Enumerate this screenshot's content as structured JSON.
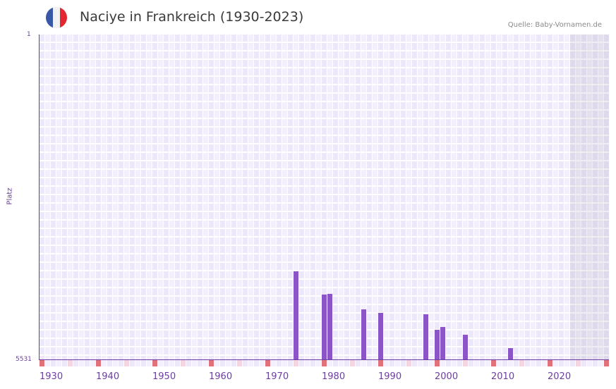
{
  "header": {
    "title": "Naciye in Frankreich (1930-2023)",
    "source": "Quelle: Baby-Vornamen.de",
    "flag_colors": [
      "#3a58a8",
      "#f2f2f2",
      "#e3262f"
    ]
  },
  "axis": {
    "y_top_label": "1",
    "y_bottom_label": "5531",
    "y_title": "Platz",
    "x_labels": [
      "1930",
      "1940",
      "1950",
      "1960",
      "1970",
      "1980",
      "1990",
      "2000",
      "2010",
      "2020"
    ]
  },
  "colors": {
    "bar": "#8b55c7",
    "axis": "#6b3fa0",
    "decade_tick": "#e0707a",
    "mid_decade_tick": "#f3d6e0",
    "cell_even": "#ede8f9",
    "cell_odd": "#f3f0fc",
    "no_data_overlay": "#dcd6e8"
  },
  "chart_data": {
    "type": "bar",
    "title": "Naciye in Frankreich (1930-2023)",
    "xlabel": "",
    "ylabel": "Platz",
    "y_inverted": true,
    "ylim": [
      1,
      5531
    ],
    "xlim": [
      1930,
      2030
    ],
    "no_data_from": 2024,
    "grid": true,
    "x_tick_labels": [
      "1930",
      "1940",
      "1950",
      "1960",
      "1970",
      "1980",
      "1990",
      "2000",
      "2010",
      "2020"
    ],
    "points": [
      {
        "year": 1975,
        "rank": 4028
      },
      {
        "year": 1980,
        "rank": 4425
      },
      {
        "year": 1981,
        "rank": 4413
      },
      {
        "year": 1987,
        "rank": 4678
      },
      {
        "year": 1990,
        "rank": 4738
      },
      {
        "year": 1998,
        "rank": 4762
      },
      {
        "year": 2000,
        "rank": 5026
      },
      {
        "year": 2001,
        "rank": 4978
      },
      {
        "year": 2005,
        "rank": 5110
      },
      {
        "year": 2013,
        "rank": 5338
      }
    ]
  }
}
